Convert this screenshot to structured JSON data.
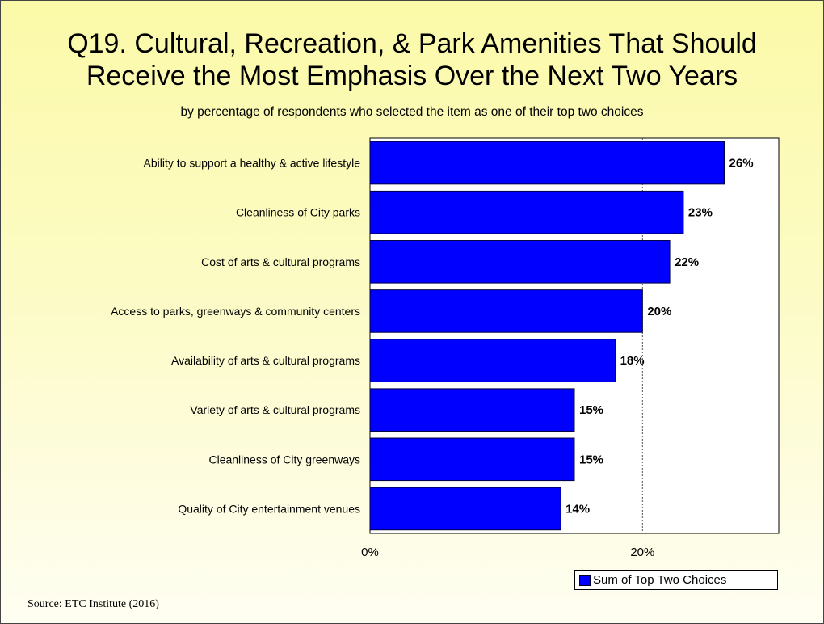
{
  "title": "Q19. Cultural, Recreation, & Park Amenities That Should\nReceive the Most Emphasis Over the Next Two Years",
  "subtitle": "by percentage of respondents who selected the item as one of their top two choices",
  "source": "Source:  ETC Institute (2016)",
  "chart_data": {
    "type": "bar",
    "orientation": "horizontal",
    "categories": [
      "Ability to support a healthy & active lifestyle",
      "Cleanliness of City parks",
      "Cost of arts & cultural programs",
      "Access to parks, greenways & community centers",
      "Availability of arts & cultural programs",
      "Variety of arts & cultural programs",
      "Cleanliness of City greenways",
      "Quality of City entertainment venues"
    ],
    "series": [
      {
        "name": "Sum of Top Two Choices",
        "values": [
          26,
          23,
          22,
          20,
          18,
          15,
          15,
          14
        ],
        "color": "#0000ff"
      }
    ],
    "value_labels": [
      "26%",
      "23%",
      "22%",
      "20%",
      "18%",
      "15%",
      "15%",
      "14%"
    ],
    "xlim": [
      0,
      30
    ],
    "xticks": [
      0,
      20
    ],
    "xtick_labels": [
      "0%",
      "20%"
    ],
    "grid": "vertical dotted at 20%",
    "legend_position": "bottom-right",
    "plot_background": "#ffffff",
    "bar_color": "#0000ff"
  }
}
